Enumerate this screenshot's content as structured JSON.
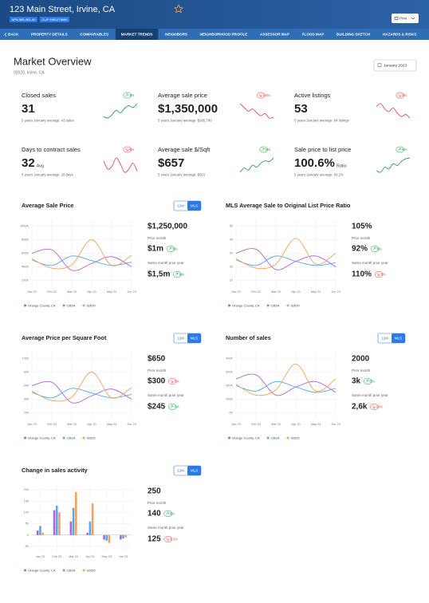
{
  "header": {
    "title": "123 Main Street, Irvine, CA",
    "badges": [
      "APN 589-361-00",
      "CLIP 5981279896"
    ],
    "print": "Print"
  },
  "nav": {
    "tabs": [
      "BACK",
      "PROPERTY DETAILS",
      "COMPARABLES",
      "MARKET TRENDS",
      "NEIGHBORS",
      "NEIGHBORHOOD PROFILE",
      "ASSESSOR MAP",
      "FLOOD MAP",
      "BUILDING SKETCH",
      "HAZARDS & RISKS"
    ],
    "active": 3
  },
  "overview": {
    "title": "Market Overview",
    "location": "92620, Irvine, CA",
    "date": "January 2023"
  },
  "kpis": [
    {
      "label": "Closed sales",
      "value": "31",
      "note": "5 years January average: 43 sales",
      "change": "3%",
      "direction": "up",
      "trend": [
        20,
        18,
        23,
        30,
        26,
        33,
        37,
        34,
        40
      ]
    },
    {
      "label": "Average sale price",
      "value": "$1,350,000",
      "note": "5 years January average: $995,780",
      "change": "3.5%",
      "direction": "down",
      "trend": [
        40,
        35,
        30,
        33,
        28,
        24,
        27,
        21,
        22
      ]
    },
    {
      "label": "Active listings",
      "value": "53",
      "note": "5 years January average: 84 listings",
      "change": "4%",
      "direction": "down",
      "trend": [
        36,
        40,
        33,
        29,
        34,
        27,
        22,
        25,
        20
      ]
    },
    {
      "label": "Days to contract sales",
      "value": "32",
      "unit": "Avg",
      "note": "5 years January average: 28 days",
      "change": "8%",
      "direction": "down",
      "trend": [
        32,
        24,
        27,
        35,
        29,
        21,
        24,
        30,
        22
      ]
    },
    {
      "label": "Average sale $/Sqft",
      "value": "$657",
      "note": "5 years January average: $601",
      "change": "5%",
      "direction": "up",
      "trend": [
        18,
        24,
        21,
        28,
        25,
        31,
        34,
        33,
        38
      ]
    },
    {
      "label": "Sale price to list price",
      "value": "100.6%",
      "unit": "Ratio",
      "note": "5 years January average: 99.2%",
      "change": "6%",
      "direction": "up",
      "trend": [
        22,
        20,
        26,
        24,
        30,
        28,
        33,
        36,
        37
      ]
    }
  ],
  "chart_data": [
    {
      "type": "line",
      "title": "Average Sale Price",
      "toggle": [
        "12M",
        "MLS"
      ],
      "toggle_active": 1,
      "categories": [
        "Jan 23",
        "Feb 23",
        "Mar 23",
        "Apr 23",
        "May 23",
        "Jun 23"
      ],
      "ylim": [
        100000,
        1100000
      ],
      "yticks": [
        {
          "value": 1000000,
          "label": "1000K"
        },
        {
          "value": 800000,
          "label": "800K"
        },
        {
          "value": 600000,
          "label": "600K"
        },
        {
          "value": 400000,
          "label": "400K"
        },
        {
          "value": 200000,
          "label": "200K"
        }
      ],
      "grid": true,
      "series": [
        {
          "name": "Orange County, CA",
          "color": "#b062e0",
          "values": [
            600000,
            650000,
            350000,
            450000,
            550000,
            400000
          ]
        },
        {
          "name": "CBSA",
          "color": "#5aa7e8",
          "values": [
            500000,
            420000,
            560000,
            490000,
            420000,
            470000
          ]
        },
        {
          "name": "92620",
          "color": "#f0a35e",
          "values": [
            520000,
            380000,
            430000,
            800000,
            420000,
            570000
          ]
        }
      ],
      "stats": {
        "value": "$1,250,000",
        "prior_label": "Prior month",
        "prior_value": "$1m",
        "prior_change": "5%",
        "prior_direction": "up",
        "year_label": "Same month prior year",
        "year_value": "$1,5m",
        "year_change": "9%",
        "year_direction": "up"
      }
    },
    {
      "type": "line",
      "title": "MLS Average Sale to Original List Price Ratio",
      "categories": [
        "Jan 23",
        "Feb 23",
        "Mar 23",
        "Apr 23",
        "May 23",
        "Jun 23"
      ],
      "ylim": [
        5,
        55
      ],
      "yticks": [
        50,
        40,
        30,
        20,
        10
      ],
      "grid": true,
      "series": [
        {
          "name": "Orange County, CA",
          "color": "#b062e0",
          "values": [
            30,
            33,
            18,
            24,
            28,
            20
          ]
        },
        {
          "name": "CBSA",
          "color": "#5aa7e8",
          "values": [
            25,
            21,
            28,
            24,
            21,
            23
          ]
        },
        {
          "name": "92620",
          "color": "#f0a35e",
          "values": [
            26,
            19,
            22,
            41,
            22,
            30
          ]
        }
      ],
      "stats": {
        "value": "105%",
        "prior_label": "Prior month",
        "prior_value": "92%",
        "prior_change": "5%",
        "prior_direction": "up",
        "year_label": "Same month prior year",
        "year_value": "110%",
        "year_change": "6%",
        "year_direction": "down"
      }
    },
    {
      "type": "line",
      "title": "Average Price per Square Foot",
      "toggle": [
        "12M",
        "MLS"
      ],
      "toggle_active": 1,
      "categories": [
        "Jan 23",
        "Feb 23",
        "Mar 23",
        "Apr 23",
        "May 23",
        "Jun 23"
      ],
      "ylim": [
        100,
        1100
      ],
      "yticks": [
        1000,
        800,
        600,
        400,
        200
      ],
      "grid": true,
      "series": [
        {
          "name": "Orange County, CA",
          "color": "#b062e0",
          "values": [
            600,
            650,
            350,
            450,
            550,
            400
          ]
        },
        {
          "name": "CBSA",
          "color": "#5aa7e8",
          "values": [
            500,
            420,
            560,
            490,
            420,
            470
          ]
        },
        {
          "name": "92620",
          "color": "#f0a35e",
          "values": [
            520,
            380,
            430,
            800,
            420,
            570
          ]
        }
      ],
      "stats": {
        "value": "$650",
        "prior_label": "Prior month",
        "prior_value": "$300",
        "prior_change": "8%",
        "prior_direction": "down",
        "year_label": "Same month prior year",
        "year_value": "$245",
        "year_change": "3%",
        "year_direction": "up"
      }
    },
    {
      "type": "line",
      "title": "Number of sales",
      "toggle": [
        "12M",
        "MLS"
      ],
      "toggle_active": 1,
      "categories": [
        "Jan 23",
        "Feb 23",
        "Mar 23",
        "Apr 23",
        "May 23",
        "Jun 23"
      ],
      "ylim": [
        -50000,
        450000
      ],
      "yticks": [
        {
          "value": 400000,
          "label": "400K"
        },
        {
          "value": 300000,
          "label": "300K"
        },
        {
          "value": 200000,
          "label": "200K"
        },
        {
          "value": 100000,
          "label": "100K"
        },
        {
          "value": 0,
          "label": "0K"
        }
      ],
      "grid": true,
      "series": [
        {
          "name": "Orange County, CA",
          "color": "#b062e0",
          "values": [
            250000,
            280000,
            130000,
            190000,
            230000,
            150000
          ]
        },
        {
          "name": "CBSA",
          "color": "#5aa7e8",
          "values": [
            200000,
            160000,
            230000,
            190000,
            150000,
            180000
          ]
        },
        {
          "name": "92620",
          "color": "#f0a35e",
          "values": [
            210000,
            130000,
            170000,
            360000,
            160000,
            250000
          ]
        }
      ],
      "stats": {
        "value": "2000",
        "prior_label": "Prior month",
        "prior_value": "3k",
        "prior_change": "5%",
        "prior_direction": "up",
        "year_label": "Same month prior year",
        "year_value": "2,6k",
        "year_change": "10%",
        "year_direction": "down"
      }
    },
    {
      "type": "bar",
      "title": "Change in sales activity",
      "toggle": [
        "12M",
        "MLS"
      ],
      "toggle_active": 1,
      "categories": [
        "Jan 23",
        "Feb 23",
        "Mar 23",
        "Apr 23",
        "May 23",
        "Jun 23"
      ],
      "ylim": [
        -75,
        225
      ],
      "yticks": [
        200,
        150,
        100,
        50,
        0,
        -50
      ],
      "grid": true,
      "series": [
        {
          "name": "Orange County, CA",
          "color": "#b062e0",
          "values": [
            20,
            110,
            60,
            10,
            -20,
            -20
          ]
        },
        {
          "name": "CBSA",
          "color": "#5aa7e8",
          "values": [
            40,
            130,
            120,
            60,
            -25,
            -15
          ]
        },
        {
          "name": "92620",
          "color": "#f0a35e",
          "values": [
            10,
            100,
            190,
            140,
            -35,
            -10
          ]
        }
      ],
      "stats": {
        "value": "250",
        "prior_label": "Prior month",
        "prior_value": "140",
        "prior_change": "5%",
        "prior_direction": "up",
        "year_label": "Same month prior year",
        "year_value": "125",
        "year_change": "3.3%",
        "year_direction": "down"
      }
    }
  ]
}
